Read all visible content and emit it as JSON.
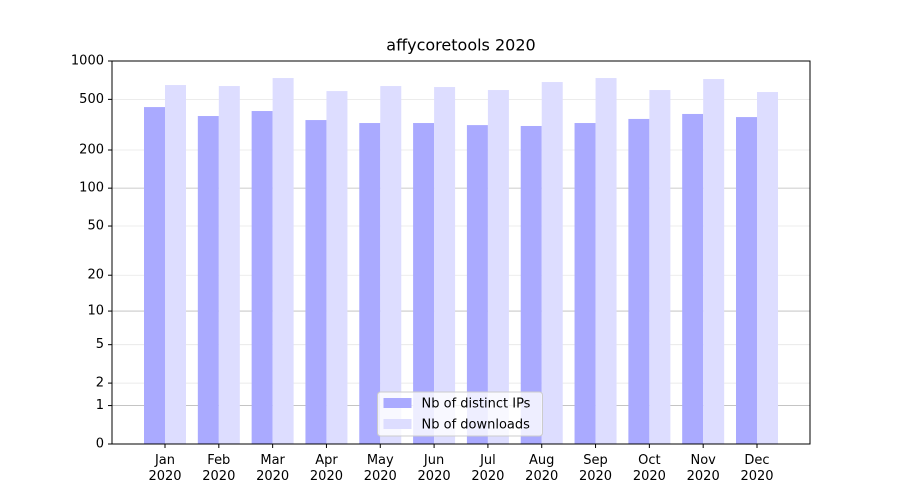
{
  "chart_data": {
    "type": "bar",
    "title": "affycoretools 2020",
    "categories": [
      "Jan 2020",
      "Feb 2020",
      "Mar 2020",
      "Apr 2020",
      "May 2020",
      "Jun 2020",
      "Jul 2020",
      "Aug 2020",
      "Sep 2020",
      "Oct 2020",
      "Nov 2020",
      "Dec 2020"
    ],
    "series": [
      {
        "name": "Nb of distinct IPs",
        "color": "#aaaaff",
        "values": [
          435,
          370,
          405,
          344,
          326,
          326,
          314,
          309,
          326,
          351,
          384,
          363
        ]
      },
      {
        "name": "Nb of downloads",
        "color": "#ddddff",
        "values": [
          648,
          636,
          735,
          581,
          636,
          625,
          592,
          684,
          735,
          592,
          722,
          571
        ]
      }
    ],
    "yscale": "log1p",
    "ylim": [
      0,
      1000
    ],
    "yticks": [
      0,
      1,
      2,
      5,
      10,
      20,
      50,
      100,
      200,
      500,
      1000
    ],
    "grid": true,
    "legend": "lower center"
  }
}
